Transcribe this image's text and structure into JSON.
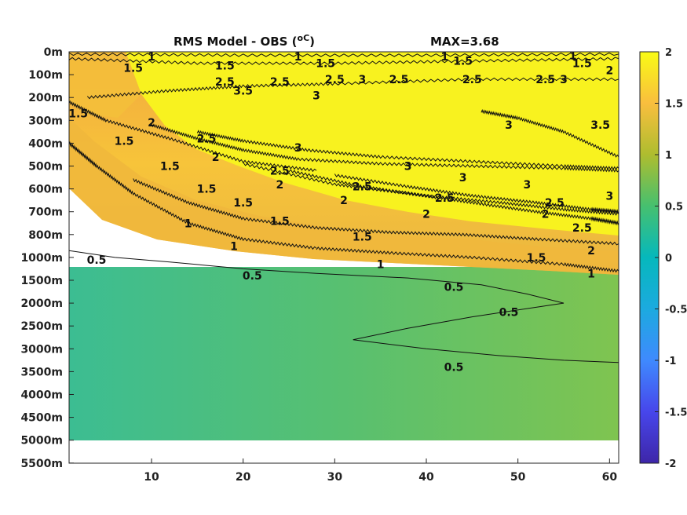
{
  "chart_data": {
    "type": "heatmap",
    "title": "RMS Model - OBS (",
    "title_unit": "oC",
    "title_close": ")",
    "max_label": "MAX=3.68",
    "y_tick_labels": [
      "0m",
      "100m",
      "200m",
      "300m",
      "400m",
      "500m",
      "600m",
      "700m",
      "800m",
      "1000m",
      "1500m",
      "2000m",
      "2500m",
      "3000m",
      "3500m",
      "4000m",
      "4500m",
      "5000m",
      "5500m"
    ],
    "x_ticks": [
      10,
      20,
      30,
      40,
      50,
      60
    ],
    "xlim": [
      1,
      61
    ],
    "data_bottom_level_index": 17,
    "colorbar": {
      "min": -2,
      "max": 2,
      "ticks": [
        2,
        1.5,
        1,
        0.5,
        0,
        -0.5,
        -1,
        -1.5,
        -2
      ],
      "tick_labels": [
        "2",
        "1.5",
        "1",
        "0.5",
        "0",
        "-0.5",
        "-1",
        "-1.5",
        "-2"
      ],
      "colormap": "parula"
    },
    "contour_levels": [
      "0.5",
      "1",
      "1.5",
      "2",
      "2.5",
      "3"
    ],
    "contours": [
      {
        "level": "1",
        "x": [
          1,
          20,
          40,
          61
        ],
        "depth_index": [
          0.1,
          0.15,
          0.15,
          0.1
        ],
        "jagged": true
      },
      {
        "level": "1.5",
        "x": [
          1,
          15,
          30,
          45,
          61
        ],
        "depth_index": [
          0.3,
          0.5,
          0.5,
          0.4,
          0.3
        ],
        "jagged": true
      },
      {
        "level": "2",
        "x": [
          3,
          12,
          20,
          30,
          45,
          61
        ],
        "depth_index": [
          2,
          1.7,
          1.5,
          1.4,
          1.2,
          1.2
        ],
        "jagged": true
      },
      {
        "level": "1.5",
        "x": [
          1,
          5,
          12,
          20,
          28
        ],
        "depth_index": [
          2.2,
          3.0,
          3.8,
          4.8,
          5.2
        ],
        "jagged": true
      },
      {
        "level": "2",
        "x": [
          10,
          15,
          20,
          26,
          35,
          45,
          55,
          61
        ],
        "depth_index": [
          3.2,
          3.8,
          4.3,
          4.7,
          4.9,
          5.0,
          5.1,
          5.2
        ],
        "jagged": true
      },
      {
        "level": "2.5",
        "x": [
          15,
          20,
          27,
          35,
          45,
          55,
          61
        ],
        "depth_index": [
          3.5,
          3.9,
          4.3,
          4.6,
          4.8,
          5.0,
          5.1
        ],
        "jagged": true
      },
      {
        "level": "2",
        "x": [
          20,
          30,
          38,
          45,
          52,
          58,
          61
        ],
        "depth_index": [
          4.9,
          5.8,
          6.2,
          6.6,
          7.0,
          7.3,
          7.5
        ],
        "jagged": true
      },
      {
        "level": "2.5",
        "x": [
          25,
          33,
          40,
          48,
          55,
          61
        ],
        "depth_index": [
          5.2,
          5.9,
          6.3,
          6.6,
          6.9,
          7.1
        ],
        "jagged": true
      },
      {
        "level": "3",
        "x": [
          30,
          38,
          45,
          52,
          58,
          61
        ],
        "depth_index": [
          5.4,
          5.9,
          6.3,
          6.6,
          6.9,
          7.0
        ],
        "jagged": true
      },
      {
        "level": "1",
        "x": [
          1,
          4,
          8,
          14,
          20,
          28
        ],
        "depth_index": [
          4.0,
          5.0,
          6.2,
          7.5,
          8.2,
          8.6
        ],
        "jagged": true
      },
      {
        "level": "1.5",
        "x": [
          8,
          14,
          20,
          28,
          36,
          44,
          52,
          61
        ],
        "depth_index": [
          5.6,
          6.6,
          7.3,
          7.7,
          7.9,
          8.0,
          8.2,
          8.4
        ],
        "jagged": true
      },
      {
        "level": "1",
        "x": [
          28,
          36,
          45,
          55,
          61
        ],
        "depth_index": [
          8.6,
          8.8,
          9.0,
          9.3,
          9.6
        ],
        "jagged": true
      },
      {
        "level": "0.5",
        "x": [
          1,
          6,
          12,
          20,
          28,
          38,
          46,
          51,
          55,
          45,
          38,
          32,
          40,
          48,
          55,
          61
        ],
        "depth_index": [
          8.7,
          9.0,
          9.2,
          9.5,
          9.7,
          9.9,
          10.2,
          10.6,
          11.0,
          11.6,
          12.1,
          12.6,
          13.0,
          13.3,
          13.5,
          13.6
        ],
        "jagged": false
      },
      {
        "level": "3",
        "x": [
          46,
          50,
          55,
          61
        ],
        "depth_index": [
          2.6,
          2.9,
          3.5,
          4.6
        ],
        "jagged": true
      }
    ],
    "contour_labels": [
      {
        "text": "1",
        "x": 10,
        "d": 0.2
      },
      {
        "text": "1.5",
        "x": 8,
        "d": 0.7
      },
      {
        "text": "1.5",
        "x": 18,
        "d": 0.6
      },
      {
        "text": "1",
        "x": 26,
        "d": 0.2
      },
      {
        "text": "1.5",
        "x": 29,
        "d": 0.5
      },
      {
        "text": "1",
        "x": 42,
        "d": 0.2
      },
      {
        "text": "1.5",
        "x": 44,
        "d": 0.4
      },
      {
        "text": "1",
        "x": 56,
        "d": 0.15
      },
      {
        "text": "1.5",
        "x": 57,
        "d": 0.5
      },
      {
        "text": "2",
        "x": 60,
        "d": 0.8
      },
      {
        "text": "2.5",
        "x": 18,
        "d": 1.3
      },
      {
        "text": "2.5",
        "x": 24,
        "d": 1.3
      },
      {
        "text": "2.5",
        "x": 30,
        "d": 1.2
      },
      {
        "text": "2.5",
        "x": 37,
        "d": 1.2
      },
      {
        "text": "2.5",
        "x": 45,
        "d": 1.2
      },
      {
        "text": "2.5",
        "x": 53,
        "d": 1.2
      },
      {
        "text": "3",
        "x": 28,
        "d": 1.9
      },
      {
        "text": "3",
        "x": 33,
        "d": 1.2
      },
      {
        "text": "3",
        "x": 55,
        "d": 1.2
      },
      {
        "text": "1.5",
        "x": 2,
        "d": 2.7
      },
      {
        "text": "1.5",
        "x": 7,
        "d": 3.9
      },
      {
        "text": "1.5",
        "x": 12,
        "d": 5.0
      },
      {
        "text": "1.5",
        "x": 16,
        "d": 6.0
      },
      {
        "text": "1.5",
        "x": 20,
        "d": 6.6
      },
      {
        "text": "1.5",
        "x": 24,
        "d": 7.4
      },
      {
        "text": "2.5",
        "x": 16,
        "d": 3.8
      },
      {
        "text": "2",
        "x": 10,
        "d": 3.1
      },
      {
        "text": "2",
        "x": 17,
        "d": 4.6
      },
      {
        "text": "2.5",
        "x": 24,
        "d": 5.2
      },
      {
        "text": "2",
        "x": 24,
        "d": 5.8
      },
      {
        "text": "3",
        "x": 26,
        "d": 4.2
      },
      {
        "text": "3",
        "x": 38,
        "d": 5.0
      },
      {
        "text": "3",
        "x": 44,
        "d": 5.5
      },
      {
        "text": "2.5",
        "x": 33,
        "d": 5.9
      },
      {
        "text": "2",
        "x": 31,
        "d": 6.5
      },
      {
        "text": "2.5",
        "x": 42,
        "d": 6.4
      },
      {
        "text": "2",
        "x": 40,
        "d": 7.1
      },
      {
        "text": "3",
        "x": 51,
        "d": 5.8
      },
      {
        "text": "3",
        "x": 60,
        "d": 6.3
      },
      {
        "text": "2.5",
        "x": 54,
        "d": 6.6
      },
      {
        "text": "2.5",
        "x": 57,
        "d": 7.7
      },
      {
        "text": "2",
        "x": 53,
        "d": 7.1
      },
      {
        "text": "2",
        "x": 58,
        "d": 8.7
      },
      {
        "text": "1.5",
        "x": 33,
        "d": 8.1
      },
      {
        "text": "1.5",
        "x": 52,
        "d": 9.0
      },
      {
        "text": "1",
        "x": 14,
        "d": 7.5
      },
      {
        "text": "1",
        "x": 19,
        "d": 8.5
      },
      {
        "text": "1",
        "x": 35,
        "d": 9.3
      },
      {
        "text": "1",
        "x": 58,
        "d": 9.7
      },
      {
        "text": "0.5",
        "x": 4,
        "d": 9.1
      },
      {
        "text": "0.5",
        "x": 21,
        "d": 9.8
      },
      {
        "text": "0.5",
        "x": 43,
        "d": 10.3
      },
      {
        "text": "0.5",
        "x": 49,
        "d": 11.4
      },
      {
        "text": "0.5",
        "x": 43,
        "d": 13.8
      },
      {
        "text": "3.5",
        "x": 59,
        "d": 3.2
      },
      {
        "text": "3",
        "x": 49,
        "d": 3.2
      },
      {
        "text": "3.5",
        "x": 20,
        "d": 1.7
      }
    ]
  }
}
